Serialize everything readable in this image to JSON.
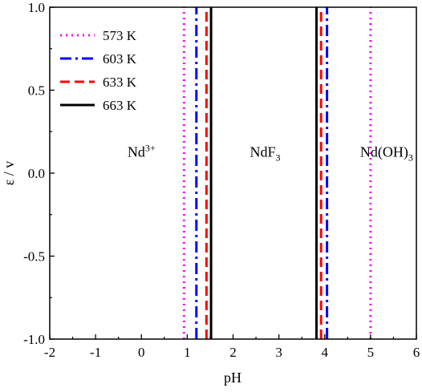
{
  "chart_data": {
    "type": "line",
    "title": "",
    "xlabel": "pH",
    "ylabel": "ε / v",
    "xlim": [
      -2,
      6
    ],
    "ylim": [
      -1.0,
      1.0
    ],
    "xticks": [
      "-2",
      "-1",
      "0",
      "1",
      "2",
      "3",
      "4",
      "5",
      "6"
    ],
    "yticks": [
      "-1.0",
      "-0.5",
      "0.0",
      "0.5",
      "1.0"
    ],
    "grid": false,
    "legend_position": "top-left",
    "series": [
      {
        "name": "573 K",
        "color": "#ff00ff",
        "style": "dotted",
        "x": [
          0.93,
          5.0
        ]
      },
      {
        "name": "603 K",
        "color": "#0000ff",
        "style": "dashdot",
        "x": [
          1.2,
          4.05
        ]
      },
      {
        "name": "633 K",
        "color": "#ff0000",
        "style": "dashed",
        "x": [
          1.42,
          3.92
        ]
      },
      {
        "name": "663 K",
        "color": "#000000",
        "style": "solid",
        "x": [
          1.52,
          3.82
        ]
      }
    ],
    "regions": [
      {
        "base": "Nd",
        "sup": "3+",
        "sub": "",
        "tail": "",
        "x": 0.0,
        "y": 0.1
      },
      {
        "base": "NdF",
        "sup": "",
        "sub": "3",
        "tail": "",
        "x": 2.7,
        "y": 0.1
      },
      {
        "base": "Nd(OH)",
        "sup": "",
        "sub": "3",
        "tail": "",
        "x": 5.35,
        "y": 0.1
      }
    ]
  }
}
